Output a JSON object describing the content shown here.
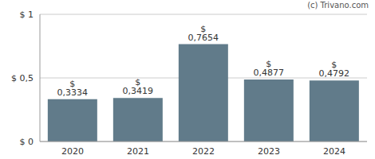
{
  "chart_data": {
    "type": "bar",
    "annotation": "(c) Trivano.com",
    "categories": [
      "2020",
      "2021",
      "2022",
      "2023",
      "2024"
    ],
    "values": [
      0.3334,
      0.3419,
      0.7654,
      0.4877,
      0.4792
    ],
    "value_labels": [
      "$ 0,3334",
      "$ 0,3419",
      "$ 0,7654",
      "$ 0,4877",
      "$ 0,4792"
    ],
    "color": "#617b8a",
    "ylim": [
      0,
      1
    ],
    "yticks": [
      {
        "value": 0,
        "label": "$ 0"
      },
      {
        "value": 0.5,
        "label": "$ 0,5"
      },
      {
        "value": 1,
        "label": "$ 1"
      }
    ],
    "grid": true,
    "data_labels": true
  }
}
